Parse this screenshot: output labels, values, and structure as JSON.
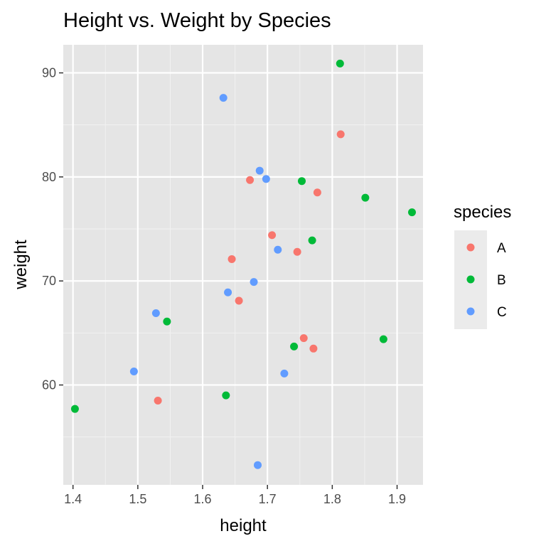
{
  "chart_data": {
    "type": "scatter",
    "title": "Height vs. Weight by Species",
    "xlabel": "height",
    "ylabel": "weight",
    "xlim": [
      1.385,
      1.94
    ],
    "ylim": [
      50.4,
      92.7
    ],
    "x_ticks": [
      1.4,
      1.5,
      1.6,
      1.7,
      1.8,
      1.9
    ],
    "y_ticks": [
      60,
      70,
      80,
      90
    ],
    "x_tick_labels": [
      "1.4",
      "1.5",
      "1.6",
      "1.7",
      "1.8",
      "1.9"
    ],
    "y_tick_labels": [
      "60",
      "70",
      "80",
      "90"
    ],
    "grid": true,
    "background": "#e5e5e5",
    "legend": {
      "title": "species",
      "position": "right",
      "entries": [
        "A",
        "B",
        "C"
      ]
    },
    "series": [
      {
        "name": "A",
        "color": "#f8766d",
        "points": [
          [
            1.813,
            84.1
          ],
          [
            1.673,
            79.7
          ],
          [
            1.777,
            78.5
          ],
          [
            1.707,
            74.4
          ],
          [
            1.746,
            72.8
          ],
          [
            1.645,
            72.1
          ],
          [
            1.656,
            68.1
          ],
          [
            1.756,
            64.5
          ],
          [
            1.771,
            63.5
          ],
          [
            1.531,
            58.5
          ]
        ]
      },
      {
        "name": "B",
        "color": "#00ba38",
        "points": [
          [
            1.812,
            90.9
          ],
          [
            1.753,
            79.6
          ],
          [
            1.851,
            78.0
          ],
          [
            1.923,
            76.6
          ],
          [
            1.769,
            73.9
          ],
          [
            1.545,
            66.1
          ],
          [
            1.879,
            64.4
          ],
          [
            1.741,
            63.7
          ],
          [
            1.636,
            59.0
          ],
          [
            1.403,
            57.7
          ]
        ]
      },
      {
        "name": "C",
        "color": "#619cff",
        "points": [
          [
            1.632,
            87.6
          ],
          [
            1.688,
            80.6
          ],
          [
            1.698,
            79.8
          ],
          [
            1.716,
            73.0
          ],
          [
            1.679,
            69.9
          ],
          [
            1.639,
            68.9
          ],
          [
            1.528,
            66.9
          ],
          [
            1.494,
            61.3
          ],
          [
            1.726,
            61.1
          ],
          [
            1.685,
            52.3
          ]
        ]
      }
    ]
  }
}
